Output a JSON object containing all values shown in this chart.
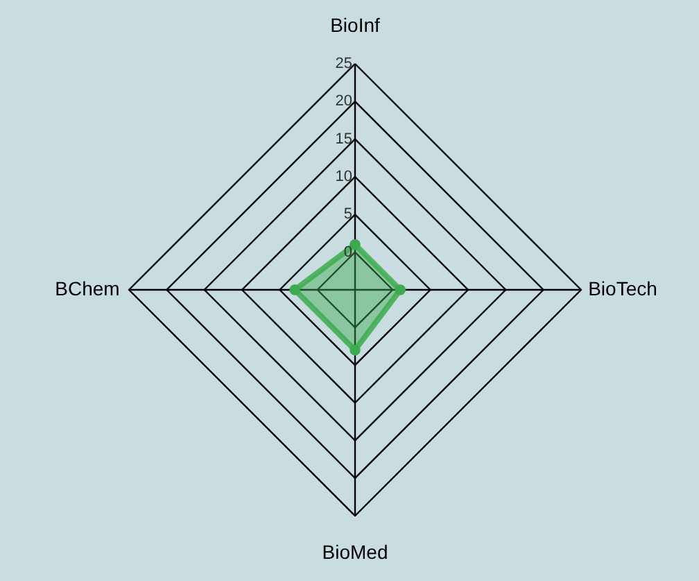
{
  "chart_data": {
    "type": "radar",
    "categories": [
      "BioInf",
      "BioTech",
      "BioMed",
      "BChem"
    ],
    "series": [
      {
        "color": "#3daa4f",
        "values": [
          1,
          1,
          3,
          3
        ]
      }
    ],
    "ylim": [
      -5,
      25
    ],
    "yticks": [
      0,
      5,
      10,
      15,
      20,
      25
    ],
    "grid": true,
    "marker": "circle"
  }
}
